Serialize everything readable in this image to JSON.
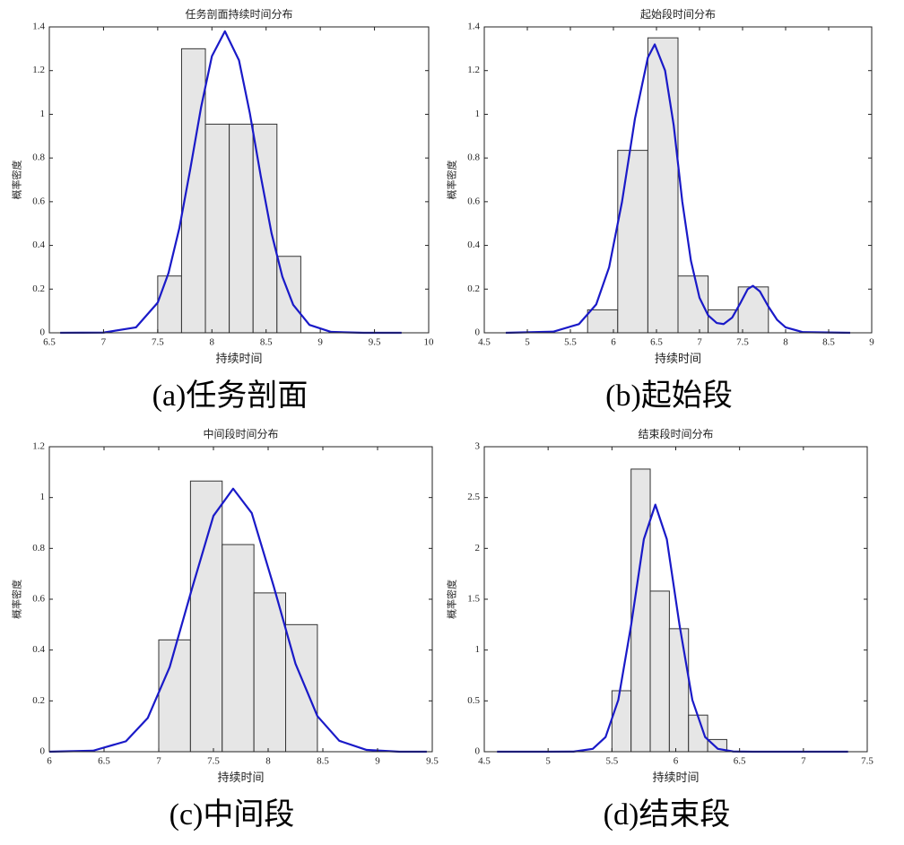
{
  "chart_data": [
    {
      "type": "histogram",
      "title": "任务剖面持续时间分布",
      "xlabel": "持续时间",
      "ylabel": "概率密度",
      "caption": "(a)任务剖面",
      "bins": [
        7.5,
        7.72,
        7.94,
        8.16,
        8.38,
        8.6,
        8.82
      ],
      "values": [
        0.26,
        1.3,
        0.955,
        0.955,
        0.955,
        0.35
      ],
      "bar_color": "#e6e6e6",
      "edge_color": "#333333",
      "xlim": [
        6.5,
        10
      ],
      "xticks": [
        6.5,
        7,
        7.5,
        8,
        8.5,
        9,
        9.5,
        10
      ],
      "ylim": [
        0,
        1.4
      ],
      "yticks": [
        0,
        0.2,
        0.4,
        0.6,
        0.8,
        1,
        1.2,
        1.4
      ],
      "curve": {
        "color": "#1a1ac8",
        "x": [
          6.6,
          7.0,
          7.3,
          7.5,
          7.6,
          7.7,
          7.8,
          7.9,
          8.0,
          8.12,
          8.25,
          8.35,
          8.45,
          8.55,
          8.65,
          8.75,
          8.9,
          9.1,
          9.4,
          9.75
        ],
        "values": [
          0,
          0.001,
          0.025,
          0.138,
          0.274,
          0.48,
          0.748,
          1.032,
          1.266,
          1.38,
          1.247,
          1.005,
          0.719,
          0.456,
          0.257,
          0.128,
          0.036,
          0.004,
          0,
          0
        ]
      }
    },
    {
      "type": "histogram",
      "title": "起始段时间分布",
      "xlabel": "持续时间",
      "ylabel": "概率密度",
      "caption": "(b)起始段",
      "bins": [
        5.7,
        6.05,
        6.4,
        6.75,
        7.1,
        7.45,
        7.8
      ],
      "values": [
        0.105,
        0.835,
        1.35,
        0.26,
        0.105,
        0.21
      ],
      "bar_color": "#e6e6e6",
      "edge_color": "#333333",
      "xlim": [
        4.5,
        9
      ],
      "xticks": [
        4.5,
        5,
        5.5,
        6,
        6.5,
        7,
        7.5,
        8,
        8.5,
        9
      ],
      "ylim": [
        0,
        1.4
      ],
      "yticks": [
        0,
        0.2,
        0.4,
        0.6,
        0.8,
        1,
        1.2,
        1.4
      ],
      "curve": {
        "color": "#1a1ac8",
        "x": [
          4.75,
          5.3,
          5.6,
          5.8,
          5.95,
          6.1,
          6.25,
          6.4,
          6.48,
          6.6,
          6.7,
          6.8,
          6.9,
          7.0,
          7.1,
          7.2,
          7.28,
          7.38,
          7.48,
          7.56,
          7.62,
          7.7,
          7.8,
          7.9,
          8.0,
          8.2,
          8.75
        ],
        "values": [
          0,
          0.005,
          0.04,
          0.13,
          0.3,
          0.6,
          0.98,
          1.26,
          1.32,
          1.2,
          0.95,
          0.6,
          0.33,
          0.16,
          0.08,
          0.045,
          0.04,
          0.07,
          0.14,
          0.2,
          0.215,
          0.19,
          0.12,
          0.06,
          0.025,
          0.003,
          0
        ]
      }
    },
    {
      "type": "histogram",
      "title": "中间段时间分布",
      "xlabel": "持续时间",
      "ylabel": "概率密度",
      "caption": "(c)中间段",
      "bins": [
        7.0,
        7.29,
        7.58,
        7.87,
        8.16,
        8.45
      ],
      "values": [
        0.44,
        1.065,
        0.815,
        0.625,
        0.5
      ],
      "bar_color": "#e6e6e6",
      "edge_color": "#333333",
      "xlim": [
        6,
        9.5
      ],
      "xticks": [
        6,
        6.5,
        7,
        7.5,
        8,
        8.5,
        9,
        9.5
      ],
      "ylim": [
        0,
        1.2
      ],
      "yticks": [
        0,
        0.2,
        0.4,
        0.6,
        0.8,
        1,
        1.2
      ],
      "curve": {
        "color": "#1a1ac8",
        "x": [
          6.0,
          6.4,
          6.7,
          6.9,
          7.1,
          7.3,
          7.5,
          7.68,
          7.85,
          8.05,
          8.25,
          8.45,
          8.65,
          8.9,
          9.2,
          9.45
        ],
        "values": [
          0,
          0.004,
          0.041,
          0.133,
          0.333,
          0.636,
          0.928,
          1.035,
          0.939,
          0.652,
          0.346,
          0.14,
          0.043,
          0.007,
          0,
          0
        ]
      }
    },
    {
      "type": "histogram",
      "title": "结束段时间分布",
      "xlabel": "持续时间",
      "ylabel": "概率密度",
      "caption": "(d)结束段",
      "bins": [
        5.5,
        5.65,
        5.8,
        5.95,
        6.1,
        6.25,
        6.4
      ],
      "values": [
        0.6,
        2.78,
        1.58,
        1.21,
        0.36,
        0.12
      ],
      "bar_color": "#e6e6e6",
      "edge_color": "#333333",
      "xlim": [
        4.5,
        7.5
      ],
      "xticks": [
        4.5,
        5,
        5.5,
        6,
        6.5,
        7,
        7.5
      ],
      "ylim": [
        0,
        3
      ],
      "yticks": [
        0,
        0.5,
        1,
        1.5,
        2,
        2.5,
        3
      ],
      "curve": {
        "color": "#1a1ac8",
        "x": [
          4.6,
          5.0,
          5.2,
          5.35,
          5.45,
          5.55,
          5.65,
          5.75,
          5.84,
          5.93,
          6.03,
          6.13,
          6.23,
          6.33,
          6.45,
          6.6,
          6.9,
          7.35
        ],
        "values": [
          0,
          0,
          0.001,
          0.028,
          0.144,
          0.509,
          1.242,
          2.09,
          2.43,
          2.09,
          1.242,
          0.509,
          0.144,
          0.028,
          0.002,
          0,
          0,
          0
        ]
      }
    }
  ]
}
